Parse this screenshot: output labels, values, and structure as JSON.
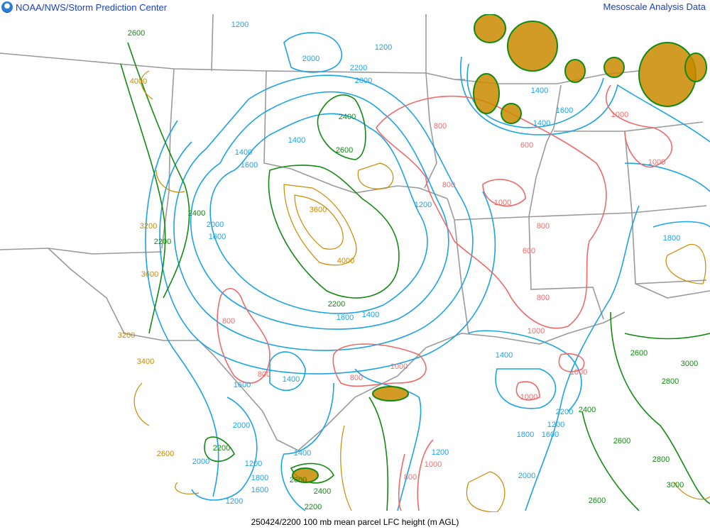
{
  "header": {
    "title": "NOAA/NWS/Storm Prediction Center",
    "right_title": "Mesoscale Analysis Data",
    "logo": "noaa-logo-icon"
  },
  "footer": {
    "caption": "250424/2200 100 mb mean parcel LFC height (m AGL)"
  },
  "colors": {
    "blue": "#1aa3e6",
    "green": "#128a12",
    "orange": "#c98a00",
    "red": "#f06a6a",
    "border": "#9a9a9a",
    "title": "#1c3fbf"
  },
  "contour_labels": [
    "1200",
    "2600",
    "2000",
    "1200",
    "2200",
    "2000",
    "2400",
    "1400",
    "2600",
    "1400",
    "1600",
    "800",
    "600",
    "800",
    "1000",
    "1000",
    "1000",
    "1400",
    "1600",
    "1400",
    "1200",
    "3600",
    "4000",
    "800",
    "600",
    "800",
    "1800",
    "1600",
    "2000",
    "2200",
    "2400",
    "3200",
    "3600",
    "800",
    "1400",
    "1600",
    "2200",
    "3200",
    "3400",
    "800",
    "1600",
    "1400",
    "800",
    "1000",
    "1000",
    "1400",
    "1000",
    "1000",
    "2600",
    "3000",
    "2800",
    "2400",
    "2200",
    "1200",
    "1800",
    "1600",
    "2600",
    "2800",
    "3000",
    "2000",
    "2200",
    "2000",
    "1200",
    "1400",
    "1200",
    "1000",
    "800",
    "2000",
    "1800",
    "1600",
    "1200",
    "2600",
    "2400",
    "2200",
    "2600",
    "2600",
    "4000"
  ]
}
